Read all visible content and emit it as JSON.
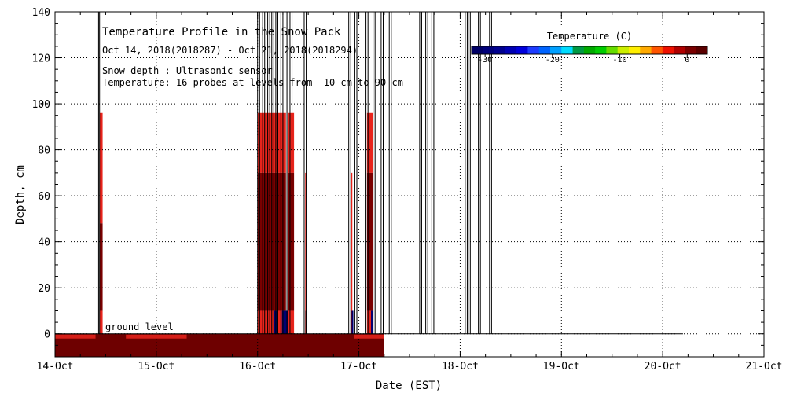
{
  "chart_data": {
    "type": "heatmap",
    "title": "Temperature Profile in the Snow Pack",
    "subtitle": "Oct 14, 2018(2018287) - Oct 21, 2018(2018294)",
    "notes": [
      "Snow depth : Ultrasonic sensor",
      "Temperature: 16 probes at levels from -10 cm to 90 cm"
    ],
    "xlabel": "Date (EST)",
    "ylabel": "Depth, cm",
    "xlim": [
      0,
      7
    ],
    "ylim": [
      -10,
      140
    ],
    "x_tick_values": [
      0,
      1,
      2,
      3,
      4,
      5,
      6,
      7
    ],
    "x_tick_labels": [
      "14-Oct",
      "15-Oct",
      "16-Oct",
      "17-Oct",
      "18-Oct",
      "19-Oct",
      "20-Oct",
      "21-Oct"
    ],
    "y_ticks": [
      0,
      20,
      40,
      60,
      80,
      100,
      120,
      140
    ],
    "grid": true,
    "ground_label": "ground level",
    "colorbar": {
      "label": "Temperature (C)",
      "range": [
        -32,
        3
      ],
      "tick_values": [
        -30,
        -20,
        -10,
        0
      ],
      "tick_labels": [
        "-30",
        "-20",
        "-10",
        "0"
      ],
      "colors": [
        "#000066",
        "#00007a",
        "#000090",
        "#0000b4",
        "#0000dc",
        "#1e3cff",
        "#0064ff",
        "#00a0ff",
        "#00dcff",
        "#009944",
        "#00aa00",
        "#00cc00",
        "#66dd00",
        "#ccee00",
        "#ffee00",
        "#ffaa00",
        "#ff5500",
        "#ee1100",
        "#b00000",
        "#7a0000",
        "#5a0000"
      ]
    },
    "soil_layer": {
      "x_range": [
        0,
        3.25
      ],
      "y_range": [
        -10,
        0
      ],
      "color": "#6e0000",
      "accent_color": "#e8241c"
    },
    "snow_depth_spikes": [
      [
        0.43,
        0.44
      ],
      [
        2.0,
        2.02
      ],
      [
        2.05,
        2.07
      ],
      [
        2.1,
        2.12
      ],
      [
        2.14,
        2.16
      ],
      [
        2.18,
        2.2
      ],
      [
        2.23,
        2.25
      ],
      [
        2.27,
        2.29
      ],
      [
        2.32,
        2.34
      ],
      [
        2.46,
        2.48
      ],
      [
        2.9,
        2.92
      ],
      [
        2.96,
        2.98
      ],
      [
        3.07,
        3.09
      ],
      [
        3.14,
        3.16
      ],
      [
        3.22,
        3.24
      ],
      [
        3.3,
        3.32
      ],
      [
        3.6,
        3.62
      ],
      [
        3.66,
        3.68
      ],
      [
        3.72,
        3.74
      ],
      [
        4.05,
        4.07
      ],
      [
        4.08,
        4.1
      ],
      [
        4.18,
        4.2
      ],
      [
        4.29,
        4.31
      ]
    ],
    "snow_depth_baseline": {
      "x_range": [
        0,
        6.2
      ],
      "value": 0
    },
    "temperature_columns": [
      {
        "x": [
          0.44,
          0.47
        ],
        "top": 96,
        "mid": 48,
        "bottom": 10
      },
      {
        "x": [
          2.0,
          2.28
        ],
        "top": 96,
        "mid": 70,
        "bottom": 10
      },
      {
        "x": [
          2.3,
          2.36
        ],
        "top": 96,
        "mid": 70,
        "bottom": 10
      },
      {
        "x": [
          2.47,
          2.48
        ],
        "top": 70,
        "mid": 10,
        "bottom": 0
      },
      {
        "x": [
          2.92,
          2.93
        ],
        "top": 70,
        "mid": 10,
        "bottom": 0
      },
      {
        "x": [
          3.08,
          3.14
        ],
        "top": 96,
        "mid": 70,
        "bottom": 10
      }
    ],
    "column_colors": {
      "warm": "#7a0000",
      "hot": "#e8241c",
      "cold": "#000070"
    },
    "cold_segments": [
      [
        2.16,
        2.2
      ],
      [
        2.24,
        2.3
      ],
      [
        2.93,
        2.94
      ],
      [
        3.12,
        3.14
      ]
    ]
  }
}
